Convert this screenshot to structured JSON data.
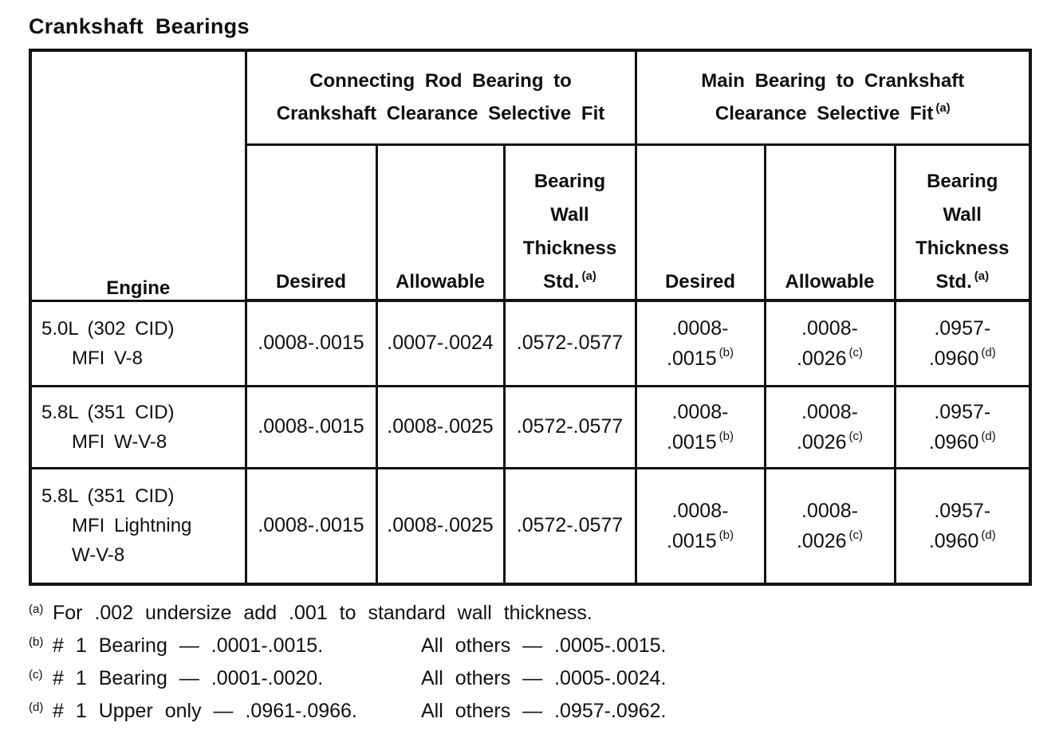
{
  "page": {
    "title": "Crankshaft Bearings"
  },
  "colors": {
    "text": "#101010",
    "border": "#131313",
    "background": "#ffffff"
  },
  "table": {
    "engine_header": "Engine",
    "groups": [
      {
        "line1": "Connecting Rod Bearing to",
        "line2": "Crankshaft Clearance Selective Fit",
        "sup": ""
      },
      {
        "line1": "Main Bearing to Crankshaft",
        "line2": "Clearance Selective Fit",
        "sup": "(a)"
      }
    ],
    "sub_headers": [
      {
        "label": "Desired"
      },
      {
        "label": "Allowable"
      },
      {
        "lines": [
          "Bearing",
          "Wall",
          "Thickness"
        ],
        "last": "Std.",
        "sup": "(a)"
      },
      {
        "label": "Desired"
      },
      {
        "label": "Allowable"
      },
      {
        "lines": [
          "Bearing",
          "Wall",
          "Thickness"
        ],
        "last": "Std.",
        "sup": "(a)"
      }
    ],
    "rows": [
      {
        "engine_lines": [
          "5.0L (302 CID)",
          "MFI V-8"
        ],
        "conrod": {
          "desired": ".0008-.0015",
          "allowable": ".0007-.0024",
          "wall": ".0572-.0577"
        },
        "main": {
          "desired": {
            "line1": ".0008-",
            "line2": ".0015",
            "sup": "(b)"
          },
          "allowable": {
            "line1": ".0008-",
            "line2": ".0026",
            "sup": "(c)"
          },
          "wall": {
            "line1": ".0957-",
            "line2": ".0960",
            "sup": "(d)"
          }
        }
      },
      {
        "engine_lines": [
          "5.8L (351 CID)",
          "MFI W-V-8"
        ],
        "conrod": {
          "desired": ".0008-.0015",
          "allowable": ".0008-.0025",
          "wall": ".0572-.0577"
        },
        "main": {
          "desired": {
            "line1": ".0008-",
            "line2": ".0015",
            "sup": "(b)"
          },
          "allowable": {
            "line1": ".0008-",
            "line2": ".0026",
            "sup": "(c)"
          },
          "wall": {
            "line1": ".0957-",
            "line2": ".0960",
            "sup": "(d)"
          }
        }
      },
      {
        "engine_lines": [
          "5.8L (351 CID)",
          "MFI Lightning",
          "W-V-8"
        ],
        "conrod": {
          "desired": ".0008-.0015",
          "allowable": ".0008-.0025",
          "wall": ".0572-.0577"
        },
        "main": {
          "desired": {
            "line1": ".0008-",
            "line2": ".0015",
            "sup": "(b)"
          },
          "allowable": {
            "line1": ".0008-",
            "line2": ".0026",
            "sup": "(c)"
          },
          "wall": {
            "line1": ".0957-",
            "line2": ".0960",
            "sup": "(d)"
          }
        }
      }
    ]
  },
  "footnotes": [
    {
      "marker": "(a)",
      "text": "For .002 undersize add .001 to standard wall thickness.",
      "text2": ""
    },
    {
      "marker": "(b)",
      "text": "# 1 Bearing — .0001-.0015.",
      "text2": "All others — .0005-.0015."
    },
    {
      "marker": "(c)",
      "text": "# 1 Bearing — .0001-.0020.",
      "text2": "All others — .0005-.0024."
    },
    {
      "marker": "(d)",
      "text": "# 1 Upper only — .0961-.0966.",
      "text2": "All others — .0957-.0962."
    }
  ]
}
